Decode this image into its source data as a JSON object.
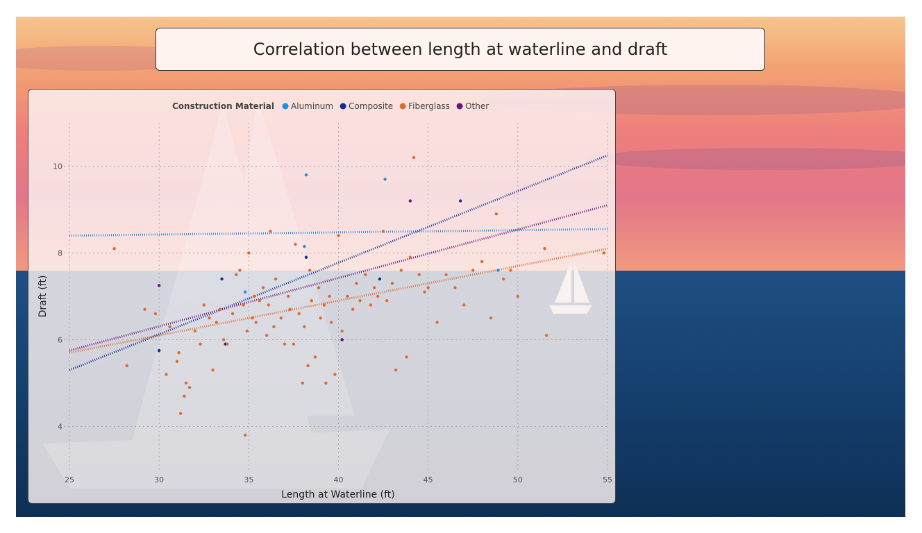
{
  "title": "Correlation between length at waterline and draft",
  "colors": {
    "Aluminum": "#1f8fe6",
    "Composite": "#122d94",
    "Fiberglass": "#e06a2e",
    "Other": "#6b1280"
  },
  "chart_data": {
    "type": "scatter",
    "title": "",
    "xlabel": "Length at Waterline (ft)",
    "ylabel": "Draft (ft)",
    "xlim": [
      25,
      55
    ],
    "ylim": [
      3,
      11
    ],
    "x_ticks": [
      25,
      30,
      35,
      40,
      45,
      50,
      55
    ],
    "y_ticks": [
      4,
      6,
      8,
      10
    ],
    "grid": true,
    "legend_title": "Construction Material",
    "legend_position": "top",
    "series": [
      {
        "name": "Aluminum",
        "points": [
          [
            38.2,
            9.8
          ],
          [
            42.6,
            9.7
          ],
          [
            38.1,
            8.15
          ],
          [
            34.8,
            7.1
          ],
          [
            48.9,
            7.6
          ]
        ],
        "trend": [
          [
            25,
            8.4
          ],
          [
            55,
            8.55
          ]
        ]
      },
      {
        "name": "Composite",
        "points": [
          [
            30,
            5.75
          ],
          [
            33.5,
            7.4
          ],
          [
            33.7,
            5.9
          ],
          [
            38.2,
            7.9
          ],
          [
            40.2,
            6.0
          ],
          [
            42.3,
            7.4
          ],
          [
            46.8,
            9.2
          ]
        ],
        "trend": [
          [
            25,
            5.3
          ],
          [
            55,
            10.25
          ]
        ]
      },
      {
        "name": "Fiberglass",
        "points": [
          [
            27.5,
            8.1
          ],
          [
            28.2,
            5.4
          ],
          [
            29.2,
            6.7
          ],
          [
            29.8,
            6.6
          ],
          [
            30.4,
            5.2
          ],
          [
            30.6,
            6.3
          ],
          [
            31.0,
            5.5
          ],
          [
            31.2,
            4.3
          ],
          [
            31.1,
            5.7
          ],
          [
            31.4,
            4.7
          ],
          [
            31.5,
            5.0
          ],
          [
            31.7,
            4.9
          ],
          [
            32.0,
            6.2
          ],
          [
            32.3,
            5.9
          ],
          [
            32.5,
            6.8
          ],
          [
            32.8,
            6.5
          ],
          [
            33.0,
            5.3
          ],
          [
            33.2,
            6.4
          ],
          [
            33.4,
            6.7
          ],
          [
            33.6,
            6.0
          ],
          [
            33.8,
            5.9
          ],
          [
            34.1,
            6.6
          ],
          [
            34.3,
            7.5
          ],
          [
            34.5,
            7.6
          ],
          [
            34.7,
            6.8
          ],
          [
            34.8,
            3.8
          ],
          [
            34.9,
            6.2
          ],
          [
            35.0,
            8.0
          ],
          [
            35.2,
            6.5
          ],
          [
            35.3,
            7.0
          ],
          [
            35.4,
            6.4
          ],
          [
            35.6,
            6.9
          ],
          [
            35.8,
            7.2
          ],
          [
            36.0,
            6.1
          ],
          [
            36.1,
            6.8
          ],
          [
            36.2,
            8.5
          ],
          [
            36.4,
            6.3
          ],
          [
            36.5,
            7.4
          ],
          [
            36.8,
            6.5
          ],
          [
            37.0,
            5.9
          ],
          [
            37.2,
            7.0
          ],
          [
            37.3,
            6.7
          ],
          [
            37.5,
            5.9
          ],
          [
            37.6,
            8.2
          ],
          [
            37.8,
            6.6
          ],
          [
            38.0,
            5.0
          ],
          [
            38.1,
            6.3
          ],
          [
            38.3,
            5.4
          ],
          [
            38.4,
            7.6
          ],
          [
            38.5,
            6.9
          ],
          [
            38.7,
            5.6
          ],
          [
            38.9,
            7.2
          ],
          [
            39.0,
            6.5
          ],
          [
            39.2,
            6.8
          ],
          [
            39.3,
            5.0
          ],
          [
            39.5,
            7.0
          ],
          [
            39.6,
            6.4
          ],
          [
            39.8,
            5.2
          ],
          [
            40.0,
            8.4
          ],
          [
            40.2,
            6.2
          ],
          [
            40.5,
            7.0
          ],
          [
            40.8,
            6.7
          ],
          [
            41.0,
            7.3
          ],
          [
            41.2,
            6.9
          ],
          [
            41.5,
            7.5
          ],
          [
            41.8,
            6.8
          ],
          [
            42.0,
            7.2
          ],
          [
            42.2,
            7.0
          ],
          [
            42.5,
            8.5
          ],
          [
            42.7,
            6.9
          ],
          [
            43.0,
            7.3
          ],
          [
            43.2,
            5.3
          ],
          [
            43.5,
            7.6
          ],
          [
            43.8,
            5.6
          ],
          [
            44.0,
            7.9
          ],
          [
            44.2,
            10.2
          ],
          [
            44.5,
            7.5
          ],
          [
            44.8,
            7.1
          ],
          [
            45.0,
            7.2
          ],
          [
            45.5,
            6.4
          ],
          [
            46.0,
            7.5
          ],
          [
            46.5,
            7.2
          ],
          [
            47.0,
            6.8
          ],
          [
            47.5,
            7.6
          ],
          [
            48.0,
            7.8
          ],
          [
            48.5,
            6.5
          ],
          [
            48.8,
            8.9
          ],
          [
            49.2,
            7.4
          ],
          [
            49.6,
            7.6
          ],
          [
            50.0,
            7.0
          ],
          [
            51.5,
            8.1
          ],
          [
            51.6,
            6.1
          ],
          [
            54.8,
            8.0
          ]
        ],
        "trend": [
          [
            25,
            5.7
          ],
          [
            55,
            8.1
          ]
        ]
      },
      {
        "name": "Other",
        "points": [
          [
            30,
            7.25
          ],
          [
            44,
            9.2
          ],
          [
            40.2,
            6.0
          ]
        ],
        "trend": [
          [
            25,
            5.75
          ],
          [
            55,
            9.1
          ]
        ]
      }
    ]
  }
}
